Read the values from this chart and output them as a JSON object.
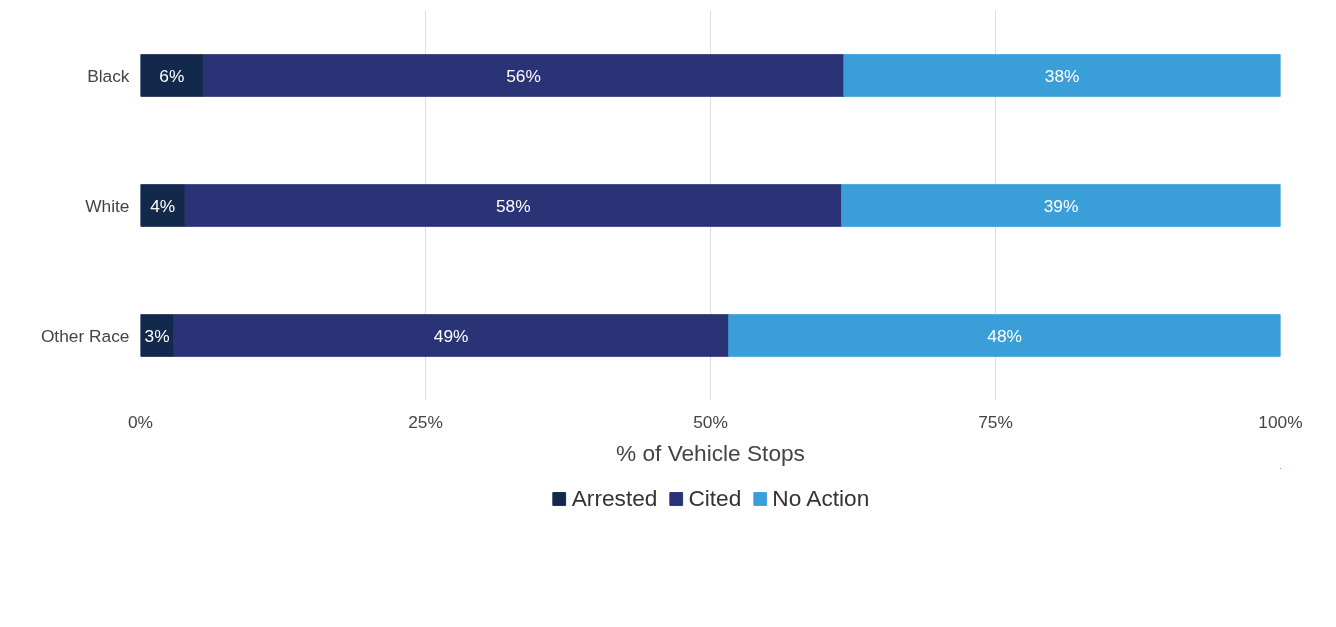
{
  "chart_data": {
    "type": "bar",
    "orientation": "horizontal",
    "stacked": true,
    "categories": [
      "Black",
      "White",
      "Other Race"
    ],
    "series": [
      {
        "name": "Arrested",
        "color": "#13294b",
        "values": [
          5.5,
          3.9,
          2.9
        ],
        "value_labels": [
          "6%",
          "4%",
          "3%"
        ]
      },
      {
        "name": "Cited",
        "color": "#2b3377",
        "values": [
          56.2,
          57.6,
          48.7
        ],
        "value_labels": [
          "56%",
          "58%",
          "49%"
        ]
      },
      {
        "name": "No Action",
        "color": "#3a9fd9",
        "values": [
          38.3,
          38.5,
          48.4
        ],
        "value_labels": [
          "38%",
          "39%",
          "48%"
        ]
      }
    ],
    "xlim": [
      0,
      100
    ],
    "xticks": [
      {
        "value": 0,
        "label": "0%"
      },
      {
        "value": 25,
        "label": "25%"
      },
      {
        "value": 50,
        "label": "50%"
      },
      {
        "value": 75,
        "label": "75%"
      },
      {
        "value": 100,
        "label": "100%"
      }
    ],
    "xlabel": "% of Vehicle Stops",
    "grid": "x",
    "legend": "bottom"
  }
}
